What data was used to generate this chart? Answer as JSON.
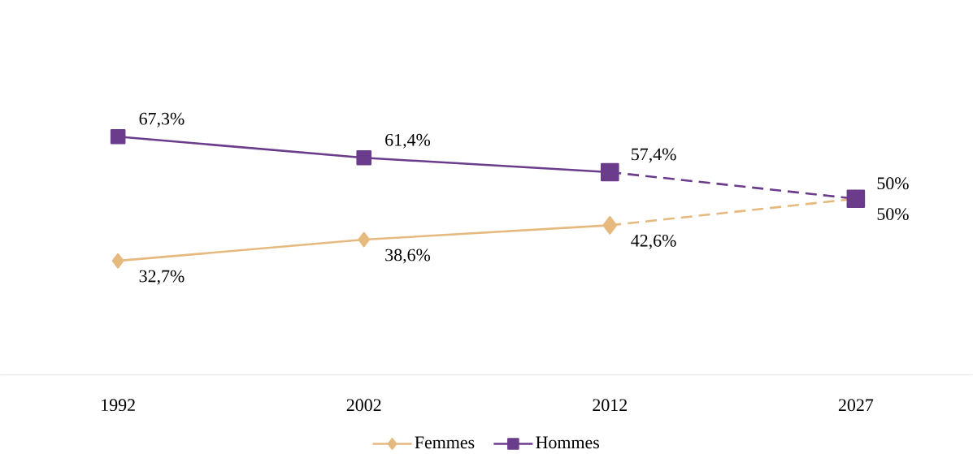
{
  "chart_data": {
    "type": "line",
    "categories": [
      "1992",
      "2002",
      "2012",
      "2027"
    ],
    "series": [
      {
        "name": "Femmes",
        "color": "#e6b97f",
        "marker": "diamond",
        "line_style": "solid",
        "values": [
          32.7,
          38.6,
          42.6,
          null
        ],
        "value_labels": [
          "32,7%",
          "38,6%",
          "42,6%",
          null
        ]
      },
      {
        "name": "Hommes",
        "color": "#6b3c8c",
        "marker": "square",
        "line_style": "solid",
        "values": [
          67.3,
          61.4,
          57.4,
          null
        ],
        "value_labels": [
          "67,3%",
          "61,4%",
          "57,4%",
          null
        ]
      },
      {
        "color": "#e6b97f",
        "marker": "diamond",
        "line_style": "dashed",
        "values": [
          null,
          null,
          42.6,
          50
        ],
        "value_labels": [
          null,
          null,
          null,
          "50%"
        ]
      },
      {
        "color": "#6b3c8c",
        "marker": "square",
        "line_style": "dashed",
        "values": [
          null,
          null,
          57.4,
          50
        ],
        "value_labels": [
          null,
          null,
          null,
          "50%"
        ]
      }
    ],
    "legend": "bottom",
    "grid": false
  }
}
